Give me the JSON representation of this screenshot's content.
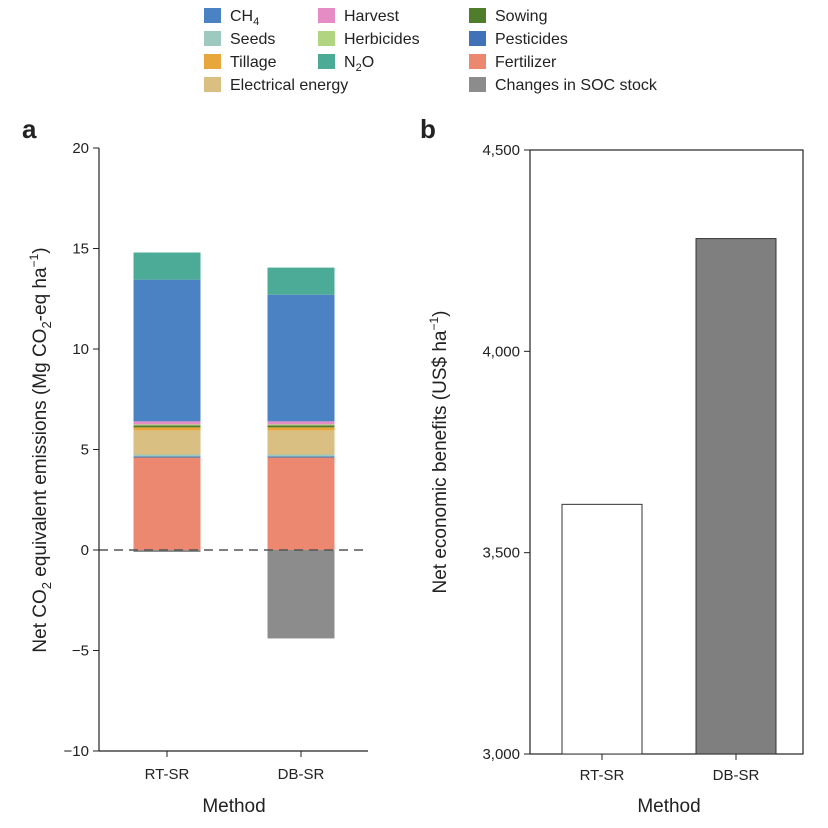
{
  "legend": [
    {
      "key": "ch4",
      "label": "CH",
      "sub": "4",
      "after": "",
      "color": "#4a82c4"
    },
    {
      "key": "seeds",
      "label": "Seeds",
      "color": "#9ec9bf"
    },
    {
      "key": "tillage",
      "label": "Tillage",
      "color": "#e8a73c"
    },
    {
      "key": "electrical",
      "label": "Electrical energy",
      "color": "#d9bf82"
    },
    {
      "key": "harvest",
      "label": "Harvest",
      "color": "#e58cc4"
    },
    {
      "key": "herbicides",
      "label": "Herbicides",
      "color": "#b0d47f"
    },
    {
      "key": "n2o",
      "label": "N",
      "sub": "2",
      "after": "O",
      "color": "#4bab97"
    },
    {
      "key": "sowing",
      "label": "Sowing",
      "color": "#4f7d2c"
    },
    {
      "key": "pesticides",
      "label": "Pesticides",
      "color": "#3f72b6"
    },
    {
      "key": "fertilizer",
      "label": "Fertilizer",
      "color": "#ec8870"
    },
    {
      "key": "soc",
      "label": "Changes in SOC stock",
      "color": "#8c8c8c"
    }
  ],
  "chart_data": [
    {
      "panel": "a",
      "type": "bar",
      "stacked": true,
      "categories": [
        "RT-SR",
        "DB-SR"
      ],
      "xlabel": "Method",
      "ylabel": {
        "pre": "Net CO",
        "sub1": "2",
        "mid": " equivalent emissions (Mg CO",
        "sub2": "2",
        "post": "-eq ha",
        "sup": "−1",
        "end": ")"
      },
      "ylim": [
        -10,
        20
      ],
      "yticks": [
        20,
        15,
        10,
        5,
        0,
        -5,
        -10
      ],
      "ytick_labels": [
        "20",
        "15",
        "10",
        "5",
        "0",
        "−5",
        "−10"
      ],
      "zero_line": "dashed",
      "series": [
        {
          "name": "Changes in SOC stock",
          "key": "soc",
          "values": [
            -0.1,
            -4.4
          ]
        },
        {
          "name": "Fertilizer",
          "key": "fertilizer",
          "values": [
            4.6,
            4.6
          ]
        },
        {
          "name": "Pesticides",
          "key": "pesticides",
          "values": [
            0.05,
            0.05
          ]
        },
        {
          "name": "Seeds",
          "key": "seeds",
          "values": [
            0.1,
            0.1
          ]
        },
        {
          "name": "Electrical energy",
          "key": "electrical",
          "values": [
            1.2,
            1.2
          ]
        },
        {
          "name": "Tillage",
          "key": "tillage",
          "values": [
            0.15,
            0.15
          ]
        },
        {
          "name": "Sowing",
          "key": "sowing",
          "values": [
            0.1,
            0.1
          ]
        },
        {
          "name": "Herbicides",
          "key": "herbicides",
          "values": [
            0.05,
            0.05
          ]
        },
        {
          "name": "Harvest",
          "key": "harvest",
          "values": [
            0.15,
            0.15
          ]
        },
        {
          "name": "CH4",
          "key": "ch4",
          "values": [
            7.05,
            6.3
          ]
        },
        {
          "name": "N2O",
          "key": "n2o",
          "values": [
            1.35,
            1.35
          ]
        }
      ]
    },
    {
      "panel": "b",
      "type": "bar",
      "categories": [
        "RT-SR",
        "DB-SR"
      ],
      "values": [
        3620,
        4280
      ],
      "bar_colors": [
        "#ffffff",
        "#7f7f7f"
      ],
      "xlabel": "Method",
      "ylabel": {
        "text": "Net economic benefits (US$ ha",
        "sup": "−1",
        "end": ")"
      },
      "ylim": [
        3000,
        4500
      ],
      "yticks": [
        4500,
        4000,
        3500,
        3000
      ],
      "ytick_labels": [
        "4,500",
        "4,000",
        "3,500",
        "3,000"
      ]
    }
  ]
}
